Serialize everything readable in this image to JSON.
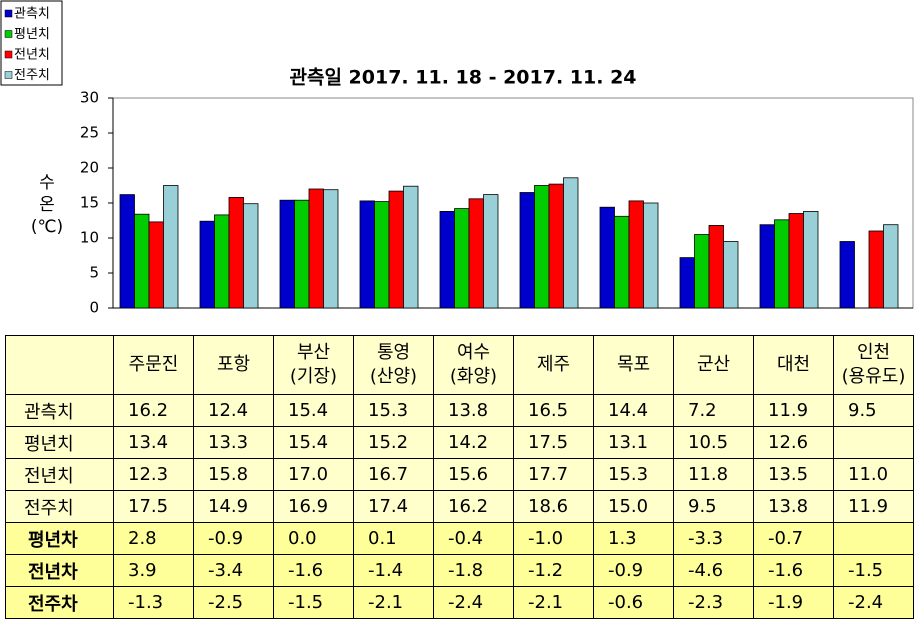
{
  "chart_data": {
    "type": "bar",
    "title": "관측일 2017. 11. 18 - 2017. 11. 24",
    "y_label": "수\n온\n(℃)",
    "categories": [
      "주문진",
      "포항",
      "부산\n(기장)",
      "통영\n(산양)",
      "여수\n(화양)",
      "제주",
      "목포",
      "군산",
      "대천",
      "인천\n(용유도)"
    ],
    "series": [
      {
        "name": "관측치",
        "color": "#0000cc",
        "values": [
          16.2,
          12.4,
          15.4,
          15.3,
          13.8,
          16.5,
          14.4,
          7.2,
          11.9,
          9.5
        ],
        "value_labels": [
          "16.2",
          "12.4",
          "15.4",
          "15.3",
          "13.8",
          "16.5",
          "14.4",
          "7.2",
          "11.9",
          "9.5"
        ]
      },
      {
        "name": "평년치",
        "color": "#00cc00",
        "values": [
          13.4,
          13.3,
          15.4,
          15.2,
          14.2,
          17.5,
          13.1,
          10.5,
          12.6,
          null
        ],
        "value_labels": [
          "13.4",
          "13.3",
          "15.4",
          "15.2",
          "14.2",
          "17.5",
          "13.1",
          "10.5",
          "12.6",
          null
        ]
      },
      {
        "name": "전년치",
        "color": "#ff0000",
        "values": [
          12.3,
          15.8,
          17.0,
          16.7,
          15.6,
          17.7,
          15.3,
          11.8,
          13.5,
          11.0
        ],
        "value_labels": [
          "12.3",
          "15.8",
          "17.0",
          "16.7",
          "15.6",
          "17.7",
          "15.3",
          "11.8",
          "13.5",
          "11.0"
        ]
      },
      {
        "name": "전주치",
        "color": "#99d0d8",
        "values": [
          17.5,
          14.9,
          16.9,
          17.4,
          16.2,
          18.6,
          15.0,
          9.5,
          13.8,
          11.9
        ],
        "value_labels": [
          "17.5",
          "14.9",
          "16.9",
          "17.4",
          "16.2",
          "18.6",
          "15.0",
          "9.5",
          "13.8",
          "11.9"
        ]
      }
    ],
    "ylim": [
      0,
      30
    ],
    "yticks": [
      0,
      5,
      10,
      15,
      20,
      25,
      30
    ],
    "grid": false,
    "legend": "top-left"
  },
  "table": {
    "rows": [
      {
        "name": "평년차",
        "values": [
          2.8,
          -0.9,
          0.0,
          0.1,
          -0.4,
          -1.0,
          1.3,
          -3.3,
          -0.7,
          null
        ],
        "value_labels": [
          "2.8",
          "-0.9",
          "0.0",
          "0.1",
          "-0.4",
          "-1.0",
          "1.3",
          "-3.3",
          "-0.7",
          null
        ]
      },
      {
        "name": "전년차",
        "values": [
          3.9,
          -3.4,
          -1.6,
          -1.4,
          -1.8,
          -1.2,
          -0.9,
          -4.6,
          -1.6,
          -1.5
        ],
        "value_labels": [
          "3.9",
          "-3.4",
          "-1.6",
          "-1.4",
          "-1.8",
          "-1.2",
          "-0.9",
          "-4.6",
          "-1.6",
          "-1.5"
        ]
      },
      {
        "name": "전주차",
        "values": [
          -1.3,
          -2.5,
          -1.5,
          -2.1,
          -2.4,
          -2.1,
          -0.6,
          -2.3,
          -1.9,
          -2.4
        ],
        "value_labels": [
          "-1.3",
          "-2.5",
          "-1.5",
          "-2.1",
          "-2.4",
          "-2.1",
          "-0.6",
          "-2.3",
          "-1.9",
          "-2.4"
        ]
      }
    ]
  }
}
